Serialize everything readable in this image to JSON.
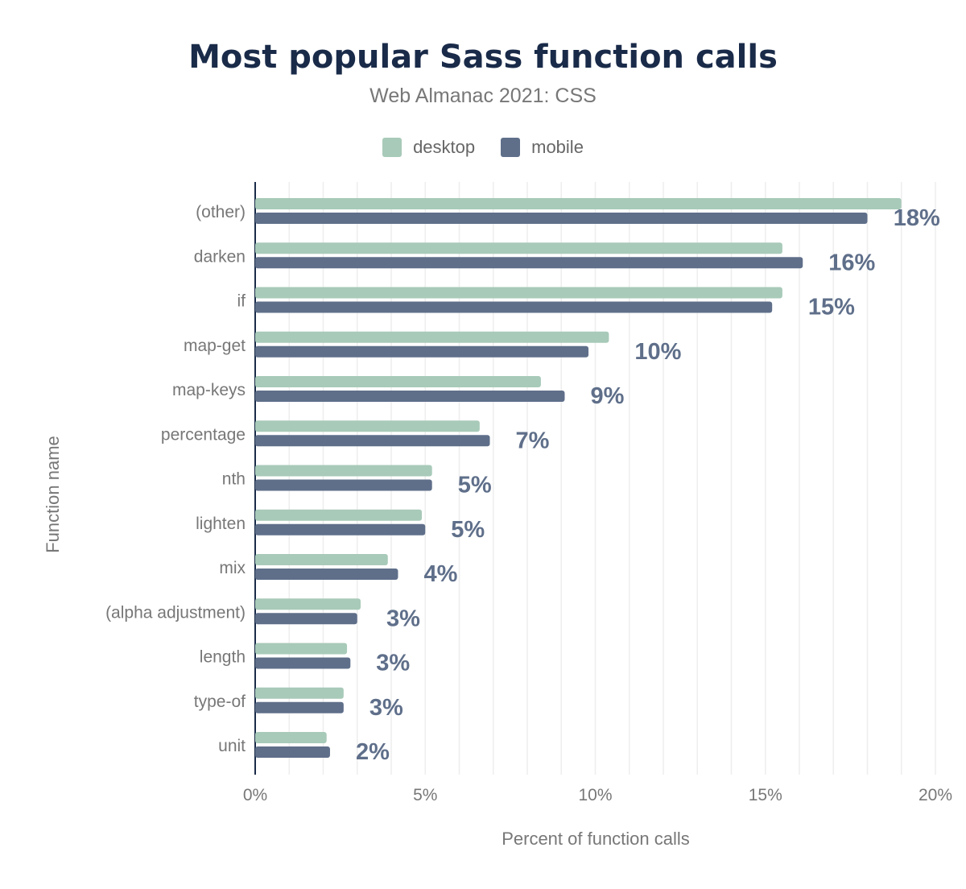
{
  "chart_data": {
    "type": "bar",
    "orientation": "horizontal",
    "title": "Most popular Sass function calls",
    "subtitle": "Web Almanac 2021: CSS",
    "xlabel": "Percent of function calls",
    "ylabel": "Function name",
    "xlim": [
      0,
      20
    ],
    "xticks": [
      "0%",
      "5%",
      "10%",
      "15%",
      "20%"
    ],
    "grid": true,
    "legend_placement": "top",
    "categories": [
      "(other)",
      "darken",
      "if",
      "map-get",
      "map-keys",
      "percentage",
      "nth",
      "lighten",
      "mix",
      "(alpha adjustment)",
      "length",
      "type-of",
      "unit"
    ],
    "series": [
      {
        "name": "desktop",
        "color": "#a8cab9",
        "values": [
          19.0,
          15.5,
          15.5,
          10.4,
          8.4,
          6.6,
          5.2,
          4.9,
          3.9,
          3.1,
          2.7,
          2.6,
          2.1
        ]
      },
      {
        "name": "mobile",
        "color": "#5f6f8a",
        "values": [
          18.0,
          16.1,
          15.2,
          9.8,
          9.1,
          6.9,
          5.2,
          5.0,
          4.2,
          3.0,
          2.8,
          2.6,
          2.2
        ]
      }
    ],
    "data_labels": [
      "18%",
      "16%",
      "15%",
      "10%",
      "9%",
      "7%",
      "5%",
      "5%",
      "4%",
      "3%",
      "3%",
      "3%",
      "2%"
    ]
  }
}
